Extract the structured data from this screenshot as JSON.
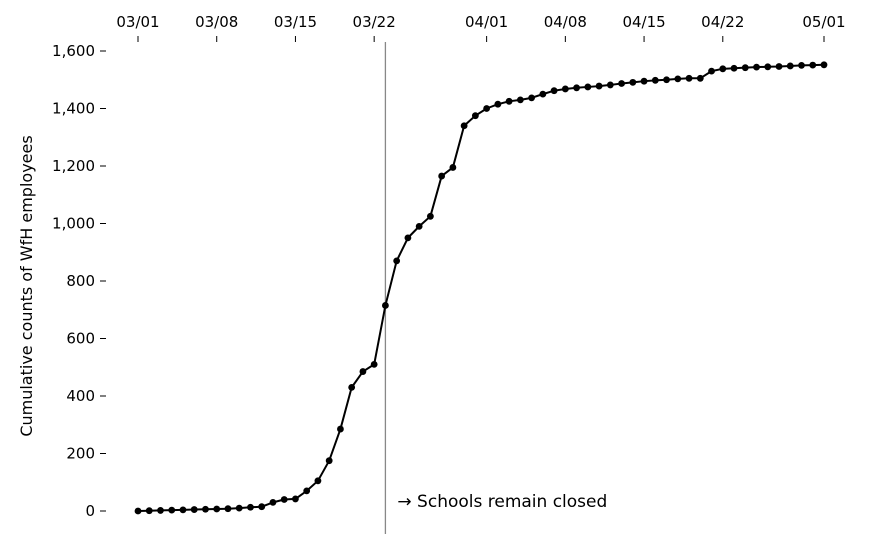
{
  "chart_data": {
    "type": "line",
    "title": "",
    "xlabel": "",
    "ylabel": "Cumulative counts of WfH employees",
    "x_tick_labels": [
      "03/01",
      "03/08",
      "03/15",
      "03/22",
      "04/01",
      "04/08",
      "04/15",
      "04/22",
      "05/01"
    ],
    "x_tick_dates": [
      "2020-03-01",
      "2020-03-08",
      "2020-03-15",
      "2020-03-22",
      "2020-04-01",
      "2020-04-08",
      "2020-04-15",
      "2020-04-22",
      "2020-05-01"
    ],
    "xlim": [
      "2020-03-01",
      "2020-05-01"
    ],
    "y_ticks": [
      0,
      200,
      400,
      600,
      800,
      1000,
      1200,
      1400,
      1600
    ],
    "y_tick_labels": [
      "0",
      "200",
      "400",
      "600",
      "800",
      "1,000",
      "1,200",
      "1,400",
      "1,600"
    ],
    "ylim": [
      0,
      1600
    ],
    "grid": false,
    "legend": "none",
    "series": [
      {
        "color": "#000000",
        "marker": "filled-circle",
        "x": [
          "2020-03-01",
          "2020-03-02",
          "2020-03-03",
          "2020-03-04",
          "2020-03-05",
          "2020-03-06",
          "2020-03-07",
          "2020-03-08",
          "2020-03-09",
          "2020-03-10",
          "2020-03-11",
          "2020-03-12",
          "2020-03-13",
          "2020-03-14",
          "2020-03-15",
          "2020-03-16",
          "2020-03-17",
          "2020-03-18",
          "2020-03-19",
          "2020-03-20",
          "2020-03-21",
          "2020-03-22",
          "2020-03-23",
          "2020-03-24",
          "2020-03-25",
          "2020-03-26",
          "2020-03-27",
          "2020-03-28",
          "2020-03-29",
          "2020-03-30",
          "2020-03-31",
          "2020-04-01",
          "2020-04-02",
          "2020-04-03",
          "2020-04-04",
          "2020-04-05",
          "2020-04-06",
          "2020-04-07",
          "2020-04-08",
          "2020-04-09",
          "2020-04-10",
          "2020-04-11",
          "2020-04-12",
          "2020-04-13",
          "2020-04-14",
          "2020-04-15",
          "2020-04-16",
          "2020-04-17",
          "2020-04-18",
          "2020-04-19",
          "2020-04-20",
          "2020-04-21",
          "2020-04-22",
          "2020-04-23",
          "2020-04-24",
          "2020-04-25",
          "2020-04-26",
          "2020-04-27",
          "2020-04-28",
          "2020-04-29",
          "2020-04-30",
          "2020-05-01"
        ],
        "y": [
          0,
          1,
          2,
          3,
          4,
          5,
          6,
          7,
          8,
          10,
          13,
          15,
          30,
          40,
          42,
          70,
          105,
          175,
          285,
          430,
          485,
          510,
          715,
          870,
          950,
          990,
          1025,
          1165,
          1195,
          1340,
          1375,
          1400,
          1415,
          1425,
          1430,
          1437,
          1450,
          1462,
          1468,
          1472,
          1475,
          1478,
          1482,
          1487,
          1491,
          1495,
          1498,
          1500,
          1503,
          1505,
          1505,
          1530,
          1538,
          1540,
          1542,
          1544,
          1545,
          1546,
          1548,
          1550,
          1551,
          1552
        ]
      }
    ],
    "annotations": [
      {
        "x": "2020-03-23",
        "type": "vertical-line",
        "color": "#888888",
        "text": "→ Schools remain closed"
      }
    ]
  }
}
